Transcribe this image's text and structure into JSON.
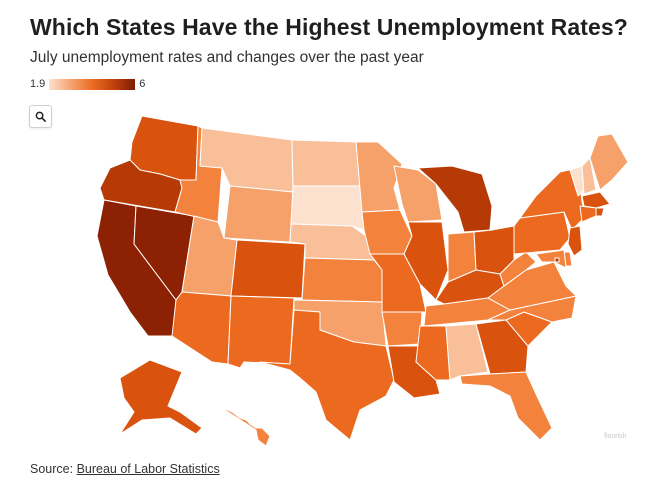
{
  "header": {
    "title": "Which States Have the Highest Unemployment Rates?",
    "subtitle": "July unemployment rates and changes over the past year"
  },
  "legend": {
    "min_label": "1.9",
    "max_label": "6",
    "color_low": "#fde1cf",
    "color_high": "#7e1d04"
  },
  "controls": {
    "zoom_icon": "search-icon"
  },
  "footer": {
    "source_prefix": "Source: ",
    "source_link": "Bureau of Labor Statistics"
  },
  "watermark": "flourish",
  "chart_data": {
    "type": "choropleth",
    "palette": {
      "c1": "#fde1cf",
      "c2": "#f9bf99",
      "c3": "#f6a06a",
      "c4": "#f2823c",
      "c5": "#ec6a1f",
      "c6": "#d9520e",
      "c7": "#b63a06",
      "c8": "#8c2203"
    },
    "states": [
      {
        "id": "WA",
        "level": "c6"
      },
      {
        "id": "OR",
        "level": "c7"
      },
      {
        "id": "CA",
        "level": "c8"
      },
      {
        "id": "NV",
        "level": "c8"
      },
      {
        "id": "ID",
        "level": "c4"
      },
      {
        "id": "MT",
        "level": "c2"
      },
      {
        "id": "WY",
        "level": "c3"
      },
      {
        "id": "UT",
        "level": "c3"
      },
      {
        "id": "AZ",
        "level": "c5"
      },
      {
        "id": "CO",
        "level": "c6"
      },
      {
        "id": "NM",
        "level": "c5"
      },
      {
        "id": "ND",
        "level": "c2"
      },
      {
        "id": "SD",
        "level": "c1"
      },
      {
        "id": "NE",
        "level": "c2"
      },
      {
        "id": "KS",
        "level": "c4"
      },
      {
        "id": "OK",
        "level": "c3"
      },
      {
        "id": "TX",
        "level": "c5"
      },
      {
        "id": "MN",
        "level": "c3"
      },
      {
        "id": "IA",
        "level": "c4"
      },
      {
        "id": "MO",
        "level": "c5"
      },
      {
        "id": "AR",
        "level": "c4"
      },
      {
        "id": "LA",
        "level": "c6"
      },
      {
        "id": "WI",
        "level": "c3"
      },
      {
        "id": "IL",
        "level": "c6"
      },
      {
        "id": "MI",
        "level": "c7"
      },
      {
        "id": "IN",
        "level": "c4"
      },
      {
        "id": "OH",
        "level": "c6"
      },
      {
        "id": "KY",
        "level": "c6"
      },
      {
        "id": "TN",
        "level": "c4"
      },
      {
        "id": "MS",
        "level": "c5"
      },
      {
        "id": "AL",
        "level": "c2"
      },
      {
        "id": "GA",
        "level": "c6"
      },
      {
        "id": "FL",
        "level": "c4"
      },
      {
        "id": "SC",
        "level": "c5"
      },
      {
        "id": "NC",
        "level": "c4"
      },
      {
        "id": "VA",
        "level": "c4"
      },
      {
        "id": "WV",
        "level": "c4"
      },
      {
        "id": "PA",
        "level": "c5"
      },
      {
        "id": "NY",
        "level": "c5"
      },
      {
        "id": "VT",
        "level": "c1"
      },
      {
        "id": "NH",
        "level": "c2"
      },
      {
        "id": "ME",
        "level": "c3"
      },
      {
        "id": "MA",
        "level": "c6"
      },
      {
        "id": "RI",
        "level": "c6"
      },
      {
        "id": "CT",
        "level": "c5"
      },
      {
        "id": "NJ",
        "level": "c6"
      },
      {
        "id": "DE",
        "level": "c4"
      },
      {
        "id": "MD",
        "level": "c4"
      },
      {
        "id": "DC",
        "level": "c7"
      },
      {
        "id": "AK",
        "level": "c6"
      },
      {
        "id": "HI",
        "level": "c4"
      }
    ]
  }
}
